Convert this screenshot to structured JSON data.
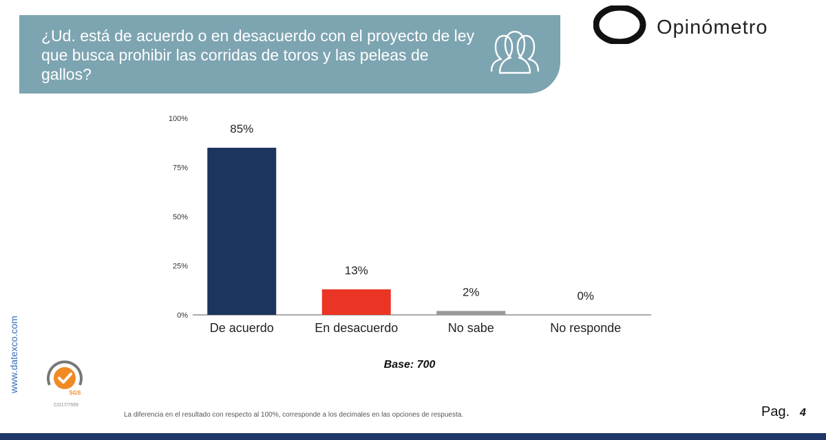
{
  "header": {
    "question": "¿Ud. está de acuerdo o en desacuerdo con el proyecto de ley que busca prohibir las corridas de toros y las peleas de gallos?",
    "banner_color": "#7da4b1"
  },
  "brand": {
    "name": "Opinómetro"
  },
  "chart_data": {
    "type": "bar",
    "categories": [
      "De acuerdo",
      "En desacuerdo",
      "No sabe",
      "No responde"
    ],
    "values": [
      85,
      13,
      2,
      0
    ],
    "value_labels": [
      "85%",
      "13%",
      "2%",
      "0%"
    ],
    "colors": [
      "#1b355e",
      "#ea3424",
      "#999999",
      "#999999"
    ],
    "ylim": [
      0,
      100
    ],
    "yticks": [
      0,
      25,
      50,
      75,
      100
    ],
    "ytick_labels": [
      "0%",
      "25%",
      "50%",
      "75%",
      "100%"
    ],
    "title": "",
    "xlabel": "",
    "ylabel": "",
    "grid": false
  },
  "base_label": "Base: 700",
  "side_url": "www.datexco.com",
  "cert": {
    "code": "CO17/7559",
    "badge": "SGS"
  },
  "footnote": "La diferencia en el resultado con respecto al 100%, corresponde a los decimales en las opciones de respuesta.",
  "page": {
    "label": "Pag.",
    "number": "4"
  }
}
